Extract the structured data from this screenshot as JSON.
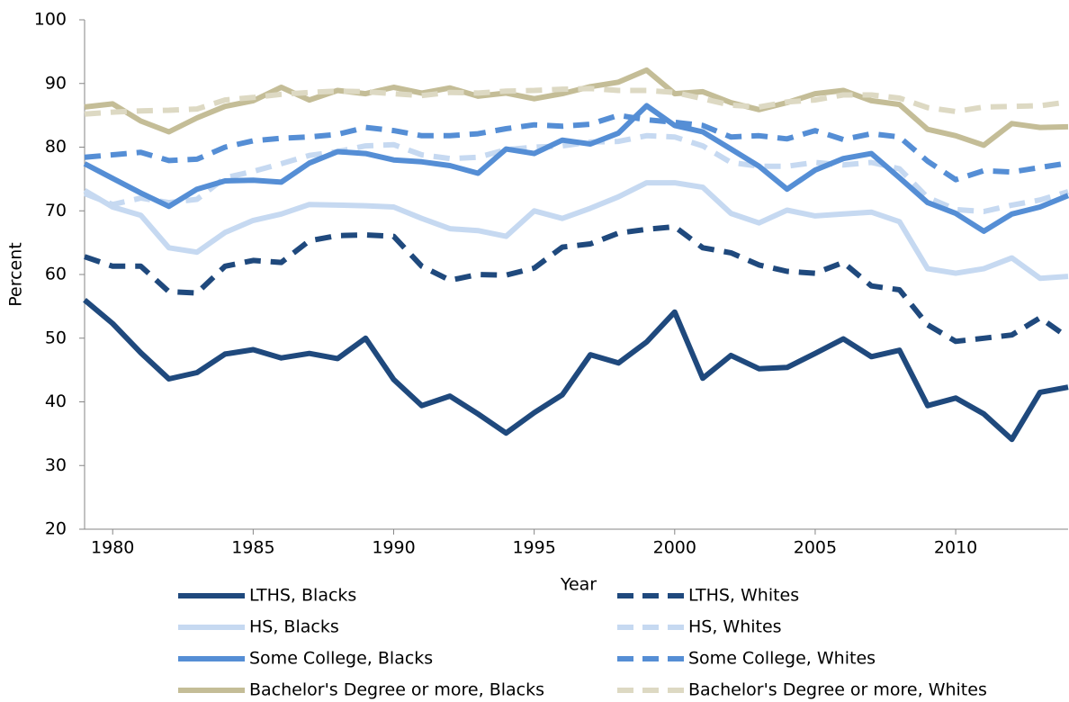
{
  "chart_data": {
    "type": "line",
    "x_label": "Year",
    "y_label": "Percent",
    "x": [
      1979,
      1980,
      1981,
      1982,
      1983,
      1984,
      1985,
      1986,
      1987,
      1988,
      1989,
      1990,
      1991,
      1992,
      1993,
      1994,
      1995,
      1996,
      1997,
      1998,
      1999,
      2000,
      2001,
      2002,
      2003,
      2004,
      2005,
      2006,
      2007,
      2008,
      2009,
      2010,
      2011,
      2012,
      2013,
      2014
    ],
    "xlim": [
      1979,
      2014
    ],
    "xticks": [
      1980,
      1985,
      1990,
      1995,
      2000,
      2005,
      2010
    ],
    "ylim": [
      20,
      100
    ],
    "yticks": [
      20,
      30,
      40,
      50,
      60,
      70,
      80,
      90,
      100
    ],
    "grid": false,
    "legend": "bottom",
    "series": [
      {
        "name": "LTHS, Blacks",
        "color": "#1f497d",
        "line_style": "solid",
        "values": [
          56,
          52.3,
          47.7,
          43.6,
          44.6,
          47.5,
          48.2,
          46.9,
          47.6,
          46.8,
          50,
          43.5,
          39.4,
          40.9,
          38.1,
          35.1,
          38.3,
          41.1,
          47.4,
          46.1,
          49.4,
          54.1,
          43.7,
          47.3,
          45.2,
          45.4,
          47.6,
          49.9,
          47.1,
          48.1,
          39.4,
          40.6,
          38.1,
          34.1,
          41.5,
          42.3
        ]
      },
      {
        "name": "LTHS, Whites",
        "color": "#1f497d",
        "line_style": "dashed",
        "values": [
          62.8,
          61.3,
          61.3,
          57.3,
          57.1,
          61.3,
          62.2,
          61.9,
          65.3,
          66.1,
          66.2,
          66,
          61.3,
          59.1,
          60,
          59.9,
          61,
          64.3,
          64.8,
          66.5,
          67.1,
          67.5,
          64.2,
          63.4,
          61.5,
          60.5,
          60.2,
          61.9,
          58.2,
          57.6,
          52.1,
          49.5,
          50,
          50.5,
          53.2,
          50.1
        ]
      },
      {
        "name": "HS, Blacks",
        "color": "#c6d9f1",
        "line_style": "solid",
        "values": [
          73.2,
          70.6,
          69.3,
          64.2,
          63.5,
          66.6,
          68.5,
          69.5,
          71,
          70.9,
          70.8,
          70.6,
          68.8,
          67.2,
          66.9,
          66,
          70,
          68.8,
          70.4,
          72.2,
          74.4,
          74.4,
          73.7,
          69.6,
          68.1,
          70.1,
          69.2,
          69.5,
          69.8,
          68.3,
          60.9,
          60.2,
          60.9,
          62.6,
          59.4,
          59.7
        ]
      },
      {
        "name": "HS, Whites",
        "color": "#c6d9f1",
        "line_style": "dashed",
        "values": [
          72.7,
          71,
          72,
          71.3,
          71.8,
          75.2,
          76.2,
          77.4,
          78.7,
          79.3,
          80.2,
          80.4,
          78.8,
          78.2,
          78.4,
          79.6,
          80,
          80.2,
          80.8,
          80.9,
          81.8,
          81.6,
          80.2,
          77.6,
          77,
          77,
          77.6,
          77.2,
          77.6,
          76.6,
          72.1,
          70.2,
          69.9,
          70.9,
          71.7,
          73
        ]
      },
      {
        "name": "Some College, Blacks",
        "color": "#558ed5",
        "line_style": "solid",
        "values": [
          77.4,
          75.1,
          72.8,
          70.7,
          73.4,
          74.7,
          74.8,
          74.5,
          77.5,
          79.3,
          79,
          78,
          77.7,
          77.1,
          75.9,
          79.7,
          79,
          81.1,
          80.5,
          82.2,
          86.5,
          83.4,
          82.4,
          79.7,
          77,
          73.4,
          76.4,
          78.2,
          79,
          75.2,
          71.3,
          69.6,
          66.8,
          69.5,
          70.6,
          72.4
        ]
      },
      {
        "name": "Some College, Whites",
        "color": "#558ed5",
        "line_style": "dashed",
        "values": [
          78.4,
          78.8,
          79.2,
          77.9,
          78.1,
          80,
          81,
          81.4,
          81.6,
          82,
          83.1,
          82.6,
          81.8,
          81.8,
          82.1,
          82.9,
          83.5,
          83.3,
          83.6,
          85,
          84.3,
          83.9,
          83.4,
          81.6,
          81.8,
          81.3,
          82.6,
          81.2,
          82.1,
          81.6,
          77.8,
          74.9,
          76.3,
          76.1,
          76.8,
          77.5
        ]
      },
      {
        "name": "Bachelor's Degree or more, Blacks",
        "color": "#c4bd97",
        "line_style": "solid",
        "values": [
          86.3,
          86.8,
          84.1,
          82.4,
          84.6,
          86.4,
          87.3,
          89.4,
          87.4,
          88.9,
          88.4,
          89.4,
          88.5,
          89.3,
          88,
          88.5,
          87.6,
          88.4,
          89.5,
          90.2,
          92.1,
          88.4,
          88.7,
          87,
          85.9,
          87,
          88.4,
          88.9,
          87.3,
          86.7,
          82.8,
          81.8,
          80.3,
          83.7,
          83.1,
          83.2
        ]
      },
      {
        "name": "Bachelor's Degree or more, Whites",
        "color": "#ddd9c3",
        "line_style": "dashed",
        "values": [
          85.2,
          85.5,
          85.7,
          85.8,
          86,
          87.4,
          87.8,
          88.3,
          88.6,
          88.8,
          88.7,
          88.4,
          88.1,
          88.6,
          88.5,
          88.8,
          88.9,
          89.1,
          89.2,
          88.9,
          88.9,
          88.6,
          87.6,
          86.6,
          86.3,
          87.1,
          87.4,
          88.2,
          88.2,
          87.7,
          86.2,
          85.6,
          86.3,
          86.4,
          86.5,
          87.1
        ]
      }
    ]
  }
}
